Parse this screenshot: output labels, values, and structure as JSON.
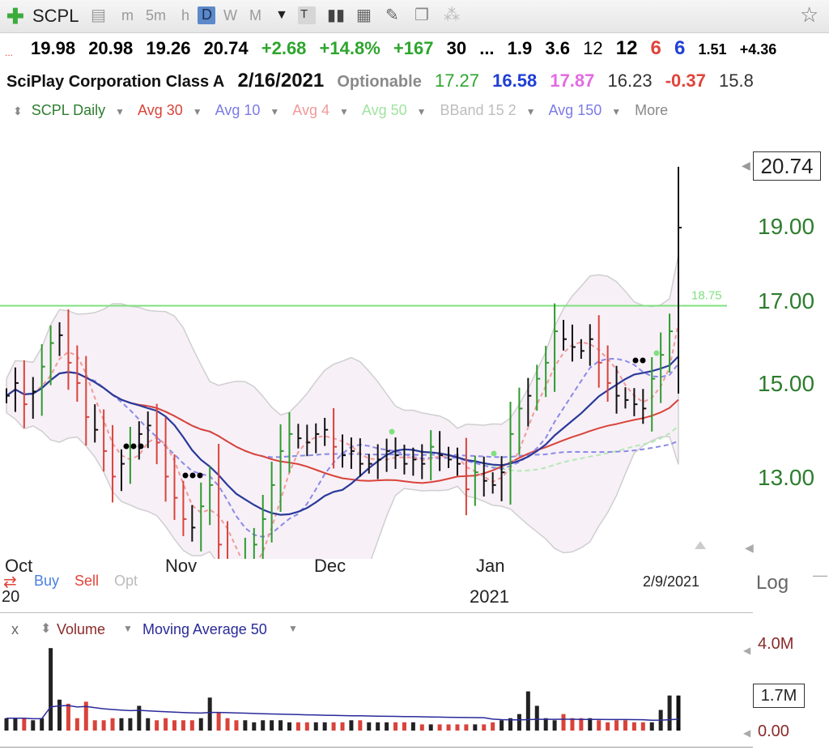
{
  "toolbar": {
    "symbol": "SCPL",
    "intervals": [
      "m",
      "5m",
      "h",
      "D",
      "W",
      "M"
    ],
    "active_interval": "D",
    "icons": [
      "add-icon",
      "layout-icon",
      "candles-icon",
      "bars-icon",
      "grid-icon",
      "draw-icon",
      "notes-icon",
      "share-icon",
      "star-icon"
    ]
  },
  "quote": {
    "open": "19.98",
    "high": "20.98",
    "low": "19.26",
    "close": "20.74",
    "change": "+2.68",
    "change_pct": "+14.8%",
    "vol_pct": "+167",
    "f1": "30",
    "f2": "...",
    "f3": "1.9",
    "f4": "3.6",
    "f5": "12",
    "f6": "12",
    "f7": "6",
    "f8": "6",
    "f9": "1.51",
    "f10": "+4.36"
  },
  "info": {
    "name": "SciPlay Corporation Class A",
    "date": "2/16/2021",
    "optionable": "Optionable",
    "v1": "17.27",
    "v2": "16.58",
    "v3": "17.87",
    "v4": "16.23",
    "v5": "-0.37",
    "v6": "15.8"
  },
  "studies": [
    {
      "label": "SCPL Daily",
      "color": "#2e7d2e"
    },
    {
      "label": "Avg 30",
      "color": "#d9433a"
    },
    {
      "label": "Avg 10",
      "color": "#7b7be6"
    },
    {
      "label": "Avg 4",
      "color": "#f09a9a"
    },
    {
      "label": "Avg 50",
      "color": "#9fe39f"
    },
    {
      "label": "BBand 15 2",
      "color": "#bdbdbd"
    },
    {
      "label": "Avg 150",
      "color": "#7b7be6"
    },
    {
      "label": "More",
      "color": "#888888"
    }
  ],
  "price_axis": {
    "labels": [
      "19.00",
      "17.00",
      "15.00",
      "13.00"
    ],
    "last": "20.74",
    "scale_button": "Log"
  },
  "time_axis": {
    "months": [
      "Oct",
      "Nov",
      "Dec",
      "Jan"
    ],
    "year_left": "20",
    "year": "2021",
    "hover_date": "2/9/2021"
  },
  "trade_legend": {
    "buy": "Buy",
    "sell": "Sell",
    "opt": "Opt"
  },
  "volume_panel": {
    "close_x": "x",
    "label": "Volume",
    "ma_label": "Moving Average 50",
    "axis": [
      "4.0M",
      "0.00"
    ],
    "current": "1.7M"
  },
  "chart_data": {
    "type": "bar",
    "title": "SCPL Daily",
    "date_range": [
      "2020-10",
      "2021-02-16"
    ],
    "horizontal_line": {
      "value": 18.75,
      "label": "18.75",
      "color": "#7fe07f"
    },
    "close_series": [
      16.5,
      16.8,
      16.3,
      16.6,
      17.2,
      17.8,
      18.0,
      17.3,
      16.8,
      16.0,
      15.7,
      15.2,
      14.6,
      14.9,
      15.3,
      15.6,
      15.8,
      15.4,
      14.6,
      14.1,
      13.6,
      13.4,
      13.9,
      14.4,
      13.0,
      12.2,
      12.1,
      12.6,
      13.0,
      13.6,
      14.4,
      15.2,
      15.6,
      15.5,
      15.4,
      15.6,
      15.7,
      15.3,
      15.1,
      15.2,
      14.9,
      14.9,
      15.0,
      15.2,
      15.1,
      14.9,
      15.0,
      14.9,
      15.3,
      15.1,
      15.0,
      14.9,
      14.3,
      14.7,
      14.5,
      14.4,
      14.7,
      15.6,
      16.2,
      16.5,
      16.9,
      17.3,
      18.1,
      17.9,
      17.7,
      17.6,
      17.9,
      17.3,
      16.8,
      16.5,
      16.4,
      16.3,
      16.2,
      16.9,
      17.5,
      18.1,
      20.74
    ],
    "volume_series_millions": [
      0.6,
      0.6,
      0.6,
      0.5,
      0.6,
      4.0,
      1.5,
      1.3,
      0.6,
      1.4,
      0.5,
      0.5,
      0.6,
      0.6,
      0.6,
      1.2,
      0.6,
      0.5,
      0.6,
      0.5,
      0.5,
      0.5,
      0.6,
      1.6,
      0.9,
      0.6,
      0.5,
      0.5,
      0.4,
      0.5,
      0.5,
      0.5,
      0.4,
      0.4,
      0.4,
      0.4,
      0.4,
      0.4,
      0.4,
      0.5,
      0.5,
      0.4,
      0.4,
      0.4,
      0.4,
      0.4,
      0.4,
      0.3,
      0.3,
      0.3,
      0.3,
      0.3,
      0.3,
      0.3,
      0.3,
      0.4,
      0.5,
      0.6,
      0.8,
      1.9,
      1.2,
      0.6,
      0.5,
      0.8,
      0.6,
      0.6,
      0.6,
      0.5,
      0.4,
      0.5,
      0.5,
      0.4,
      0.4,
      0.4,
      1.0,
      1.7,
      1.7
    ],
    "ylim": [
      12,
      21
    ],
    "volume_ylim_millions": [
      0,
      4.4
    ],
    "grid": false,
    "log_scale": false
  }
}
